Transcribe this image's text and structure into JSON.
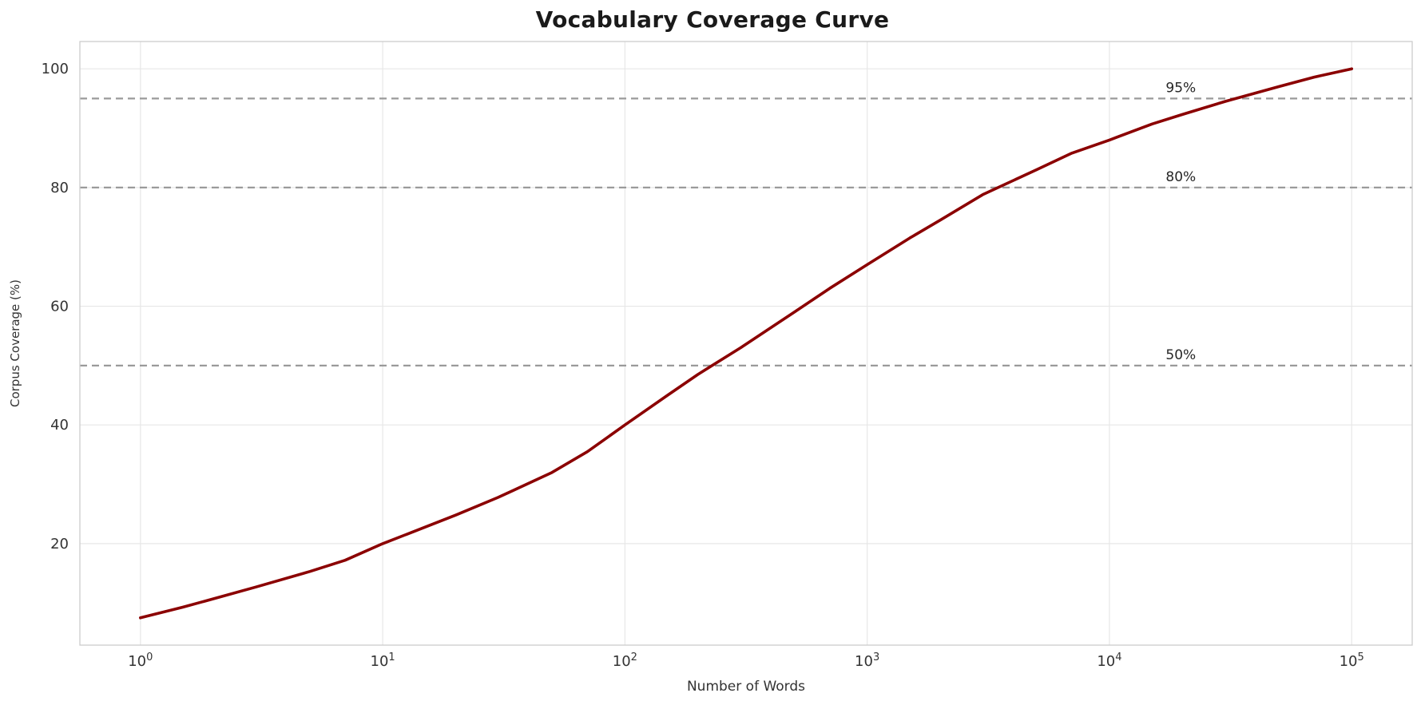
{
  "page": {
    "background": "#ffffff"
  },
  "chart_data": {
    "type": "line",
    "title": "Vocabulary Coverage Curve",
    "xlabel": "Number of Words",
    "ylabel": "Corpus Coverage (%)",
    "x_scale": "log",
    "xlim": [
      0.5623,
      177828
    ],
    "ylim": [
      2.9,
      104.6
    ],
    "grid": true,
    "legend": null,
    "xticks": [
      {
        "value": 1,
        "mantissa": "10",
        "exponent": "0"
      },
      {
        "value": 10,
        "mantissa": "10",
        "exponent": "1"
      },
      {
        "value": 100,
        "mantissa": "10",
        "exponent": "2"
      },
      {
        "value": 1000,
        "mantissa": "10",
        "exponent": "3"
      },
      {
        "value": 10000,
        "mantissa": "10",
        "exponent": "4"
      },
      {
        "value": 100000,
        "mantissa": "10",
        "exponent": "5"
      }
    ],
    "yticks": [
      {
        "value": 20,
        "label": "20"
      },
      {
        "value": 40,
        "label": "40"
      },
      {
        "value": 60,
        "label": "60"
      },
      {
        "value": 80,
        "label": "80"
      },
      {
        "value": 100,
        "label": "100"
      }
    ],
    "series": [
      {
        "name": "coverage",
        "color": "#8b0000",
        "x": [
          1,
          1.5,
          2,
          3,
          5,
          7,
          10,
          15,
          20,
          30,
          50,
          70,
          100,
          150,
          200,
          300,
          500,
          700,
          1000,
          1500,
          2000,
          3000,
          5000,
          7000,
          10000,
          15000,
          20000,
          30000,
          50000,
          70000,
          100000
        ],
        "y": [
          7.5,
          9.3,
          10.7,
          12.7,
          15.3,
          17.2,
          20,
          22.8,
          24.8,
          27.8,
          32,
          35.5,
          40,
          45,
          48.5,
          53,
          59,
          63,
          67,
          71.5,
          74.5,
          78.8,
          83,
          85.8,
          88,
          90.7,
          92.3,
          94.5,
          97,
          98.6,
          100
        ]
      }
    ],
    "thresholds": [
      {
        "value": 50,
        "label": "50%"
      },
      {
        "value": 80,
        "label": "80%"
      },
      {
        "value": 95,
        "label": "95%"
      }
    ],
    "colors": {
      "line": "#8b0000",
      "threshold_line": "#9a9a9a",
      "threshold_text": "#262626",
      "grid": "#e7e7e7",
      "frame": "#cccccc",
      "tick_text": "#333333",
      "axis_label_text": "#333333",
      "title_text": "#1a1a1a"
    }
  }
}
